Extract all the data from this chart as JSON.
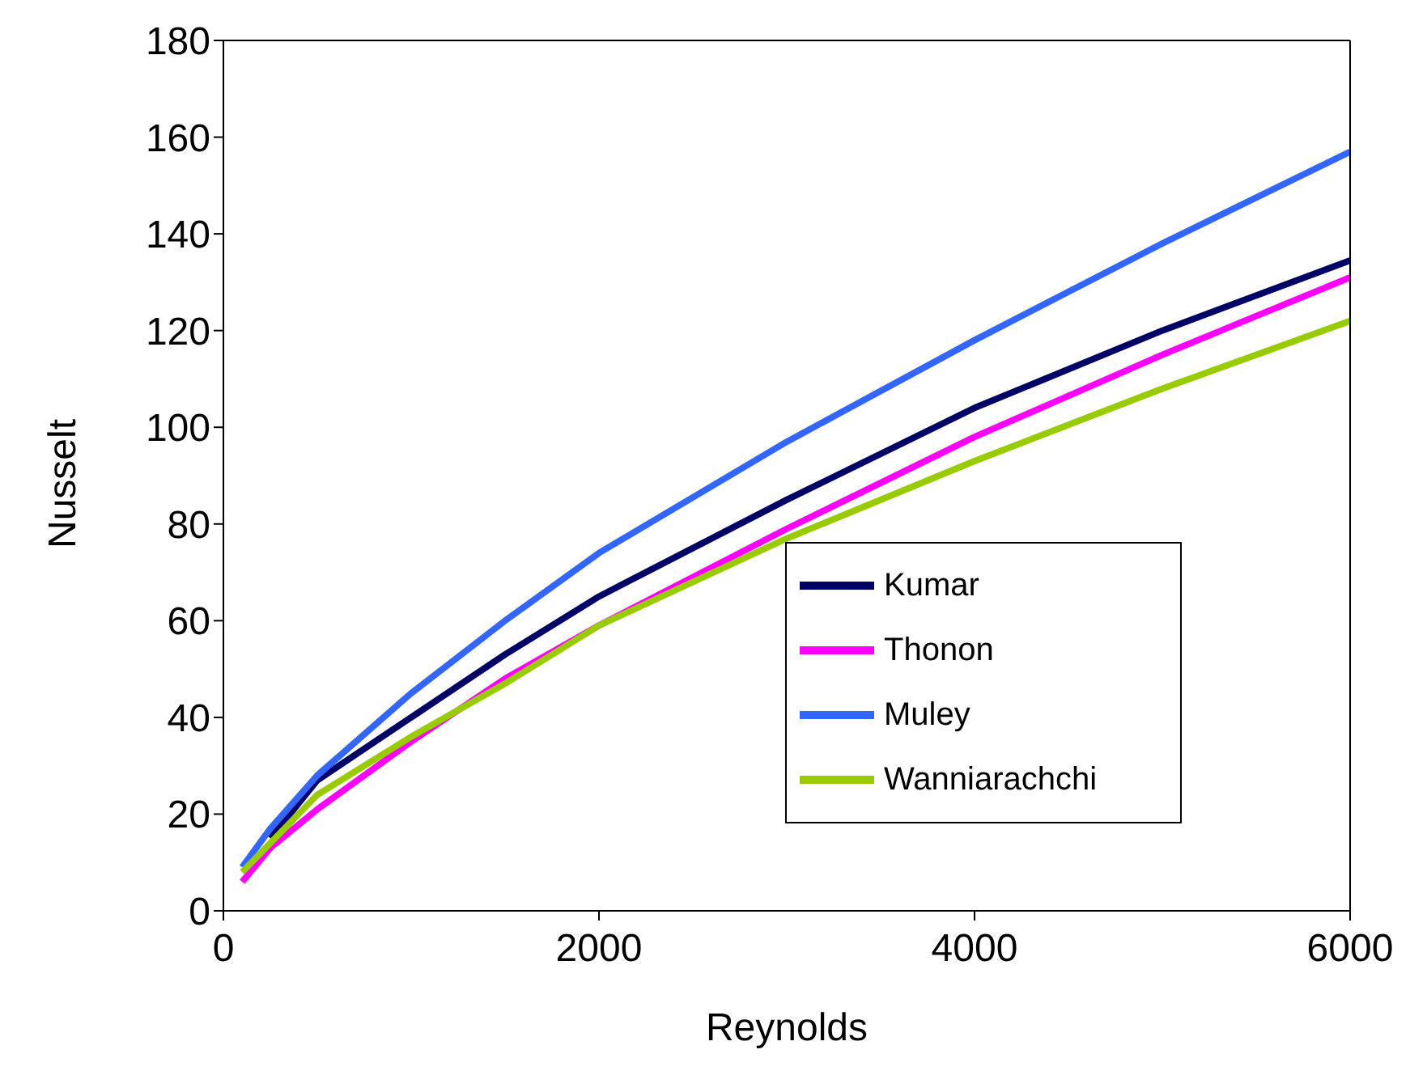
{
  "chart_data": {
    "type": "line",
    "xlabel": "Reynolds",
    "ylabel": "Nusselt",
    "x": [
      100,
      250,
      500,
      1000,
      1500,
      2000,
      3000,
      4000,
      5000,
      6000
    ],
    "series": [
      {
        "name": "Kumar",
        "color": "#000066",
        "values": [
          null,
          15,
          27,
          40,
          53,
          65,
          85,
          104,
          120,
          134.5
        ]
      },
      {
        "name": "Thonon",
        "color": "#ff00ff",
        "values": [
          6,
          13,
          21,
          35,
          48,
          59,
          79,
          98,
          115,
          131
        ]
      },
      {
        "name": "Muley",
        "color": "#3366ff",
        "values": [
          9,
          17,
          28,
          45,
          60,
          74,
          97,
          118,
          138,
          157
        ]
      },
      {
        "name": "Wanniarachchi",
        "color": "#99cc00",
        "values": [
          8,
          14,
          24,
          36,
          47,
          59,
          77,
          93,
          108,
          122
        ]
      }
    ],
    "xlim": [
      0,
      6000
    ],
    "xticks": [
      0,
      2000,
      4000,
      6000
    ],
    "ylim": [
      0,
      180
    ],
    "yticks": [
      0,
      20,
      40,
      60,
      80,
      100,
      120,
      140,
      160,
      180
    ],
    "grid": false,
    "legend": "bottom right",
    "marker": "none",
    "line_style": "solid"
  }
}
